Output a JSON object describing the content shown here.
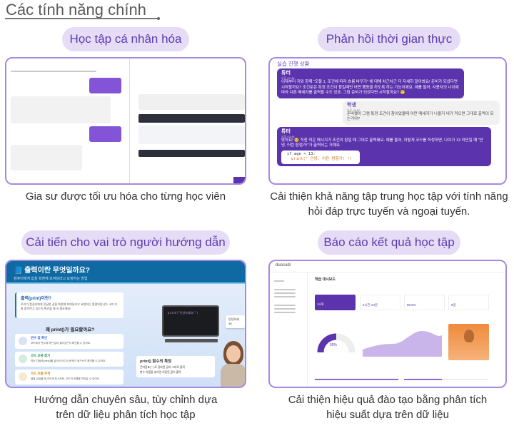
{
  "header": {
    "title": "Các tính năng chính"
  },
  "features": [
    {
      "label": "Học tập cá nhân hóa",
      "caption": "Gia sư được tối ưu hóa cho từng học viên"
    },
    {
      "label": "Phản hồi thời gian thực",
      "caption_line1": "Cải thiện khả năng tập trung học tập với tính năng",
      "caption_line2": "hỏi đáp trực tuyến và ngoại tuyến."
    },
    {
      "label": "Cải tiến cho vai trò người hướng dẫn",
      "caption_line1": "Hướng dẫn chuyên sâu, tùy chỉnh dựa",
      "caption_line2": "trên dữ liệu phân tích học tập"
    },
    {
      "label": "Báo cáo kết quả học tập",
      "caption_line1": "Cải thiện hiệu quả đào tạo bằng phân tích",
      "caption_line2": "hiệu suất dựa trên dữ liệu"
    }
  ],
  "chat": {
    "title": "실습 진행 상황",
    "messages": [
      {
        "sender": "튜터",
        "time": "오후 03:48",
        "text": "이제부터 저와 함께 \"모듈 1. 조건에 따라 흐름 바꾸기\" 에 대해 차근차근 더 자세히 알아봐요! 준비가 되셨다면 시작할까요? 조건문은 특정 조건이 참일때만 어떤 행동을 하도록 하는 기능이에요. 예를 들어, 사용자의 나이에 따라 다른 메세지를 출력할 수도 있죠. 그럼 준비가 되셨다면 시작할까요? 🙂"
      },
      {
        "sender": "학생",
        "time": "오후 03:50",
        "text": "준비됐어 그럼 특정 조건이 참이었을때 어떤 메세지가 나올지 내가 적으면 그대로 출력이 되는거야?"
      },
      {
        "sender": "튜터",
        "time": "오후 03:48",
        "text": "맞아요! 😊 직접 적은 메시지가 조건이 참일 때 그대로 출력돼요. 예를 들어, 이렇게 코드를 작성하면, 나이가 13 미만일 때 \"안녕, 어린 탐험가!\"가 출력되는 거예요.",
        "code1": "if age < 13:",
        "code2": "print(\" 안녕, 어린 탐험가! \")"
      }
    ]
  },
  "lesson": {
    "title": "📘 출력이란 무엇일까요?",
    "subtitle": "컴퓨터에게 값을 화면에 보여달라고 요청하는 방법",
    "card_title": "출력(print)이란?",
    "card_text": "우리가 컴퓨터에게 전달한 값을 화면에 보여달라고 요청하는 명령어입니다. 코드가 잘 동작하고 있는지 확인할 때 꼭 필요해요!",
    "why_title": "왜 print()가 필요할까요?",
    "reasons": [
      {
        "title": "변수 값 확인",
        "text": "코드에서 변수에 어떤 값이 들어있는지 확인할 수 있어요.",
        "color": "#3a6fd8"
      },
      {
        "title": "코드 오류 찾기",
        "text": "여러 지점에 print()를 넣어서 어디서 문제가 생기는지 확인할 수 있어요.",
        "color": "#2e9a58"
      },
      {
        "title": "코드 흐름 추적",
        "text": "결을 입었을 때 지도에 표시하듯, 코드의 흐름을 따라갈 수 있어요.",
        "color": "#d88a1a"
      }
    ],
    "terminal_code": "print(\"안녕하세요!\")",
    "output": "안녕하세요!",
    "feature_title": "print() 함수의 특징",
    "feature_items": [
      "큰따옴표(\" \")로 감싸면 글자 그대로 출력",
      "변수 이름을 넣으면 저장된 값이 출력"
    ]
  },
  "dashboard": {
    "brand": "duocodi",
    "title": "학습 대시보드",
    "value_pct": "50%",
    "stat_values": [
      "14개",
      "2시간 24분",
      "88.5%",
      "5일"
    ]
  },
  "colors": {
    "accent": "#5b33ad",
    "pill_bg": "#e7dcf6",
    "border": "#a58ae0"
  }
}
